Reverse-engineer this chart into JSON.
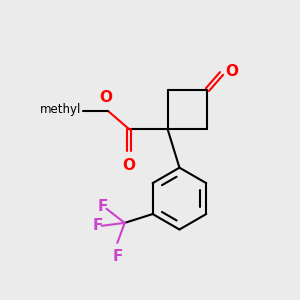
{
  "background_color": "#EBEBEB",
  "bond_color": "#000000",
  "oxygen_color": "#FF0000",
  "fluorine_color": "#CC44CC",
  "lw": 1.5,
  "figsize": [
    3.0,
    3.0
  ],
  "dpi": 100,
  "xlim": [
    0,
    10
  ],
  "ylim": [
    0,
    10
  ]
}
